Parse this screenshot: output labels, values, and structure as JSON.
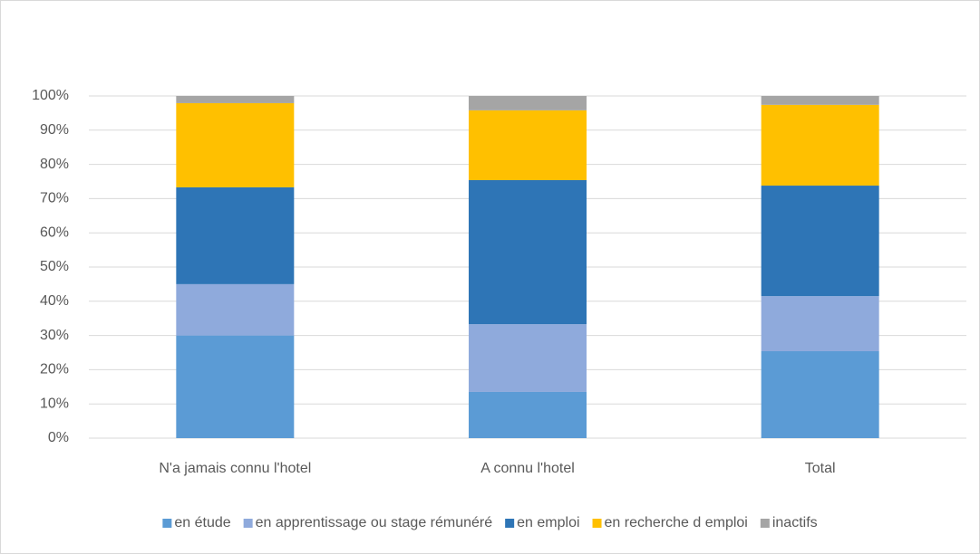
{
  "chart_data": {
    "type": "stacked_bar",
    "categories": [
      "N'a jamais connu l'hotel",
      "A connu l'hotel",
      "Total"
    ],
    "series": [
      {
        "name": "en étude",
        "color": "#5b9bd5",
        "values": [
          30,
          13.5,
          25.4
        ]
      },
      {
        "name": "en apprentissage ou stage rémunéré",
        "color": "#8faadc",
        "values": [
          15,
          19.8,
          16.1
        ]
      },
      {
        "name": "en emploi",
        "color": "#2e75b6",
        "values": [
          28.3,
          42.1,
          32.3
        ]
      },
      {
        "name": "en recherche d emploi",
        "color": "#ffc000",
        "values": [
          24.6,
          20.4,
          23.6
        ]
      },
      {
        "name": "inactifs",
        "color": "#a5a5a5",
        "values": [
          2.1,
          4.2,
          2.6
        ]
      }
    ],
    "ylim": [
      0,
      100
    ],
    "yticks": [
      {
        "value": 0,
        "label": "0%"
      },
      {
        "value": 10,
        "label": "10%"
      },
      {
        "value": 20,
        "label": "20%"
      },
      {
        "value": 30,
        "label": "30%"
      },
      {
        "value": 40,
        "label": "40%"
      },
      {
        "value": 50,
        "label": "50%"
      },
      {
        "value": 60,
        "label": "60%"
      },
      {
        "value": 70,
        "label": "70%"
      },
      {
        "value": 80,
        "label": "80%"
      },
      {
        "value": 90,
        "label": "90%"
      },
      {
        "value": 100,
        "label": "100%"
      }
    ],
    "grid": true,
    "legend": "bottom"
  }
}
